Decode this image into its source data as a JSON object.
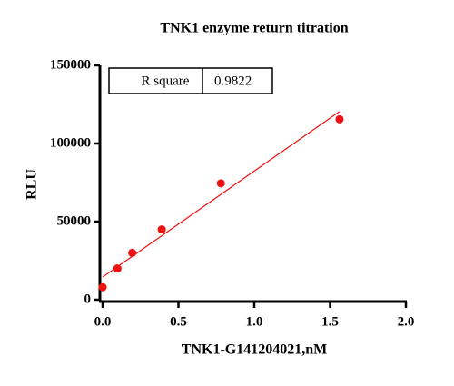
{
  "chart_data": {
    "type": "scatter",
    "title": "TNK1 enzyme return titration",
    "x_label": "TNK1-G141204021,nM",
    "y_label": "RLU",
    "points": {
      "color": "#ee1111",
      "x": [
        0,
        0.098,
        0.195,
        0.39,
        0.78,
        1.5625
      ],
      "values": [
        8000,
        20000,
        30000,
        45000,
        74500,
        115500
      ]
    },
    "fit": {
      "color": "#ee1111",
      "x": [
        0,
        1.5625
      ],
      "values": [
        14500,
        120500
      ]
    },
    "annotation": {
      "label": "R square",
      "value": 0.9822
    },
    "xlim": [
      0,
      2
    ],
    "xticks": [
      {
        "value": 0,
        "label": "0.0"
      },
      {
        "value": 0.5,
        "label": "0.5"
      },
      {
        "value": 1,
        "label": "1.0"
      },
      {
        "value": 1.5,
        "label": "1.5"
      },
      {
        "value": 2,
        "label": "2.0"
      }
    ],
    "ylim": [
      0,
      150000
    ],
    "yticks": [
      0,
      50000,
      100000,
      150000
    ]
  }
}
